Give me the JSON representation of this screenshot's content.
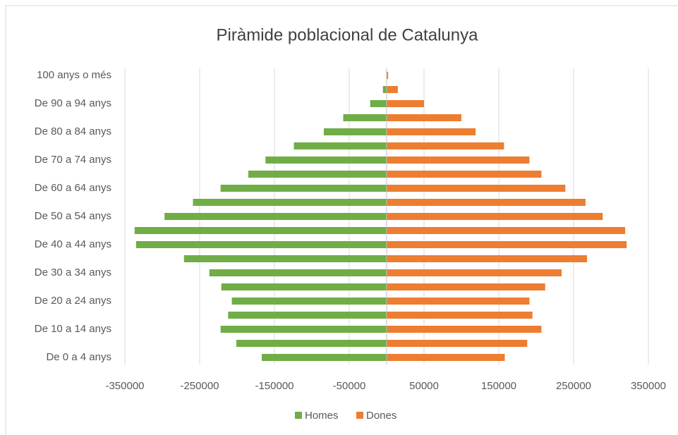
{
  "chart_data": {
    "type": "bar",
    "orientation": "horizontal",
    "title": "Piràmide poblacional de Catalunya",
    "categories": [
      "De 0 a 4 anys",
      null,
      "De 10 a 14 anys",
      null,
      "De 20 a 24 anys",
      null,
      "De 30 a 34 anys",
      null,
      "De 40 a 44 anys",
      null,
      "De 50 a 54 anys",
      null,
      "De 60 a 64 anys",
      null,
      "De 70 a 74 anys",
      null,
      "De 80 a 84 anys",
      null,
      "De 90 a 94 anys",
      null,
      "100 anys o més"
    ],
    "series": [
      {
        "name": "Homes",
        "color": "#70ad47",
        "values": [
          -167000,
          -201000,
          -222000,
          -212000,
          -207000,
          -221000,
          -237000,
          -271000,
          -335000,
          -337000,
          -297000,
          -259000,
          -222000,
          -185000,
          -162000,
          -124000,
          -84000,
          -58000,
          -22000,
          -5000,
          -500
        ]
      },
      {
        "name": "Dones",
        "color": "#ed7d31",
        "values": [
          158000,
          188000,
          207000,
          195000,
          191000,
          212000,
          234000,
          268000,
          321000,
          319000,
          289000,
          266000,
          239000,
          207000,
          191000,
          157000,
          119000,
          100000,
          50000,
          15000,
          2000
        ]
      }
    ],
    "xlim": [
      -350000,
      350000
    ],
    "xticks": [
      -350000,
      -250000,
      -150000,
      -50000,
      50000,
      150000,
      250000,
      350000
    ],
    "grid": true,
    "legend": "bottom"
  }
}
